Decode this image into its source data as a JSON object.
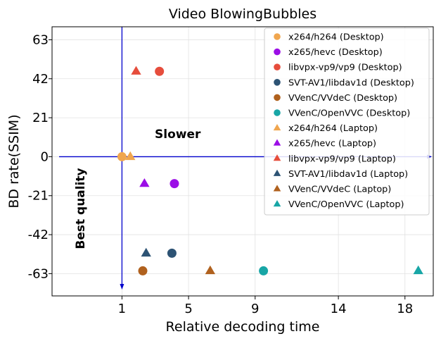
{
  "chart_data": {
    "type": "scatter",
    "title": "Video BlowingBubbles",
    "xlabel": "Relative decoding time",
    "ylabel": "BD rate(SSIM)",
    "xlim": [
      -3.2,
      19.7
    ],
    "ylim": [
      -75.0,
      70.0
    ],
    "xticks": [
      1,
      5,
      9,
      14,
      18
    ],
    "xtick_labels": [
      "1",
      "5",
      "9",
      "14",
      "18"
    ],
    "yticks": [
      63,
      42,
      21,
      0,
      -21,
      -42,
      -63
    ],
    "ytick_labels": [
      "63",
      "42",
      "21",
      "0",
      "-21",
      "-42",
      "-63"
    ],
    "grid": true,
    "legend_position": "top-right",
    "annotations": {
      "slower": "Slower",
      "best_quality": "Best quality"
    },
    "series": [
      {
        "name": "x264/h264 (Desktop)",
        "marker": "circle",
        "color": "#f0a64f",
        "x": [
          1.0
        ],
        "y": [
          0.0
        ]
      },
      {
        "name": "x265/hevc (Desktop)",
        "marker": "circle",
        "color": "#9b0ee6",
        "x": [
          4.15
        ],
        "y": [
          -14.5
        ]
      },
      {
        "name": "libvpx-vp9/vp9 (Desktop)",
        "marker": "circle",
        "color": "#e64d3c",
        "x": [
          3.25
        ],
        "y": [
          46.0
        ]
      },
      {
        "name": "SVT-AV1/libdav1d (Desktop)",
        "marker": "circle",
        "color": "#2d5374",
        "x": [
          4.0
        ],
        "y": [
          -52.0
        ]
      },
      {
        "name": "VVenC/VVdeC (Desktop)",
        "marker": "circle",
        "color": "#b0611e",
        "x": [
          2.25
        ],
        "y": [
          -61.5
        ]
      },
      {
        "name": "VVenC/OpenVVC (Desktop)",
        "marker": "circle",
        "color": "#18a6a6",
        "x": [
          9.5
        ],
        "y": [
          -61.5
        ]
      },
      {
        "name": "x264/h264 (Laptop)",
        "marker": "triangle",
        "color": "#f0a64f",
        "x": [
          1.5
        ],
        "y": [
          0.0
        ]
      },
      {
        "name": "x265/hevc (Laptop)",
        "marker": "triangle",
        "color": "#9b0ee6",
        "x": [
          2.35
        ],
        "y": [
          -14.5
        ]
      },
      {
        "name": "libvpx-vp9/vp9 (Laptop)",
        "marker": "triangle",
        "color": "#e64d3c",
        "x": [
          1.85
        ],
        "y": [
          46.0
        ]
      },
      {
        "name": "SVT-AV1/libdav1d (Laptop)",
        "marker": "triangle",
        "color": "#2d5374",
        "x": [
          2.45
        ],
        "y": [
          -52.0
        ]
      },
      {
        "name": "VVenC/VVdeC (Laptop)",
        "marker": "triangle",
        "color": "#b0611e",
        "x": [
          6.3
        ],
        "y": [
          -61.5
        ]
      },
      {
        "name": "VVenC/OpenVVC (Laptop)",
        "marker": "triangle",
        "color": "#18a6a6",
        "x": [
          18.8
        ],
        "y": [
          -61.5
        ]
      }
    ]
  }
}
